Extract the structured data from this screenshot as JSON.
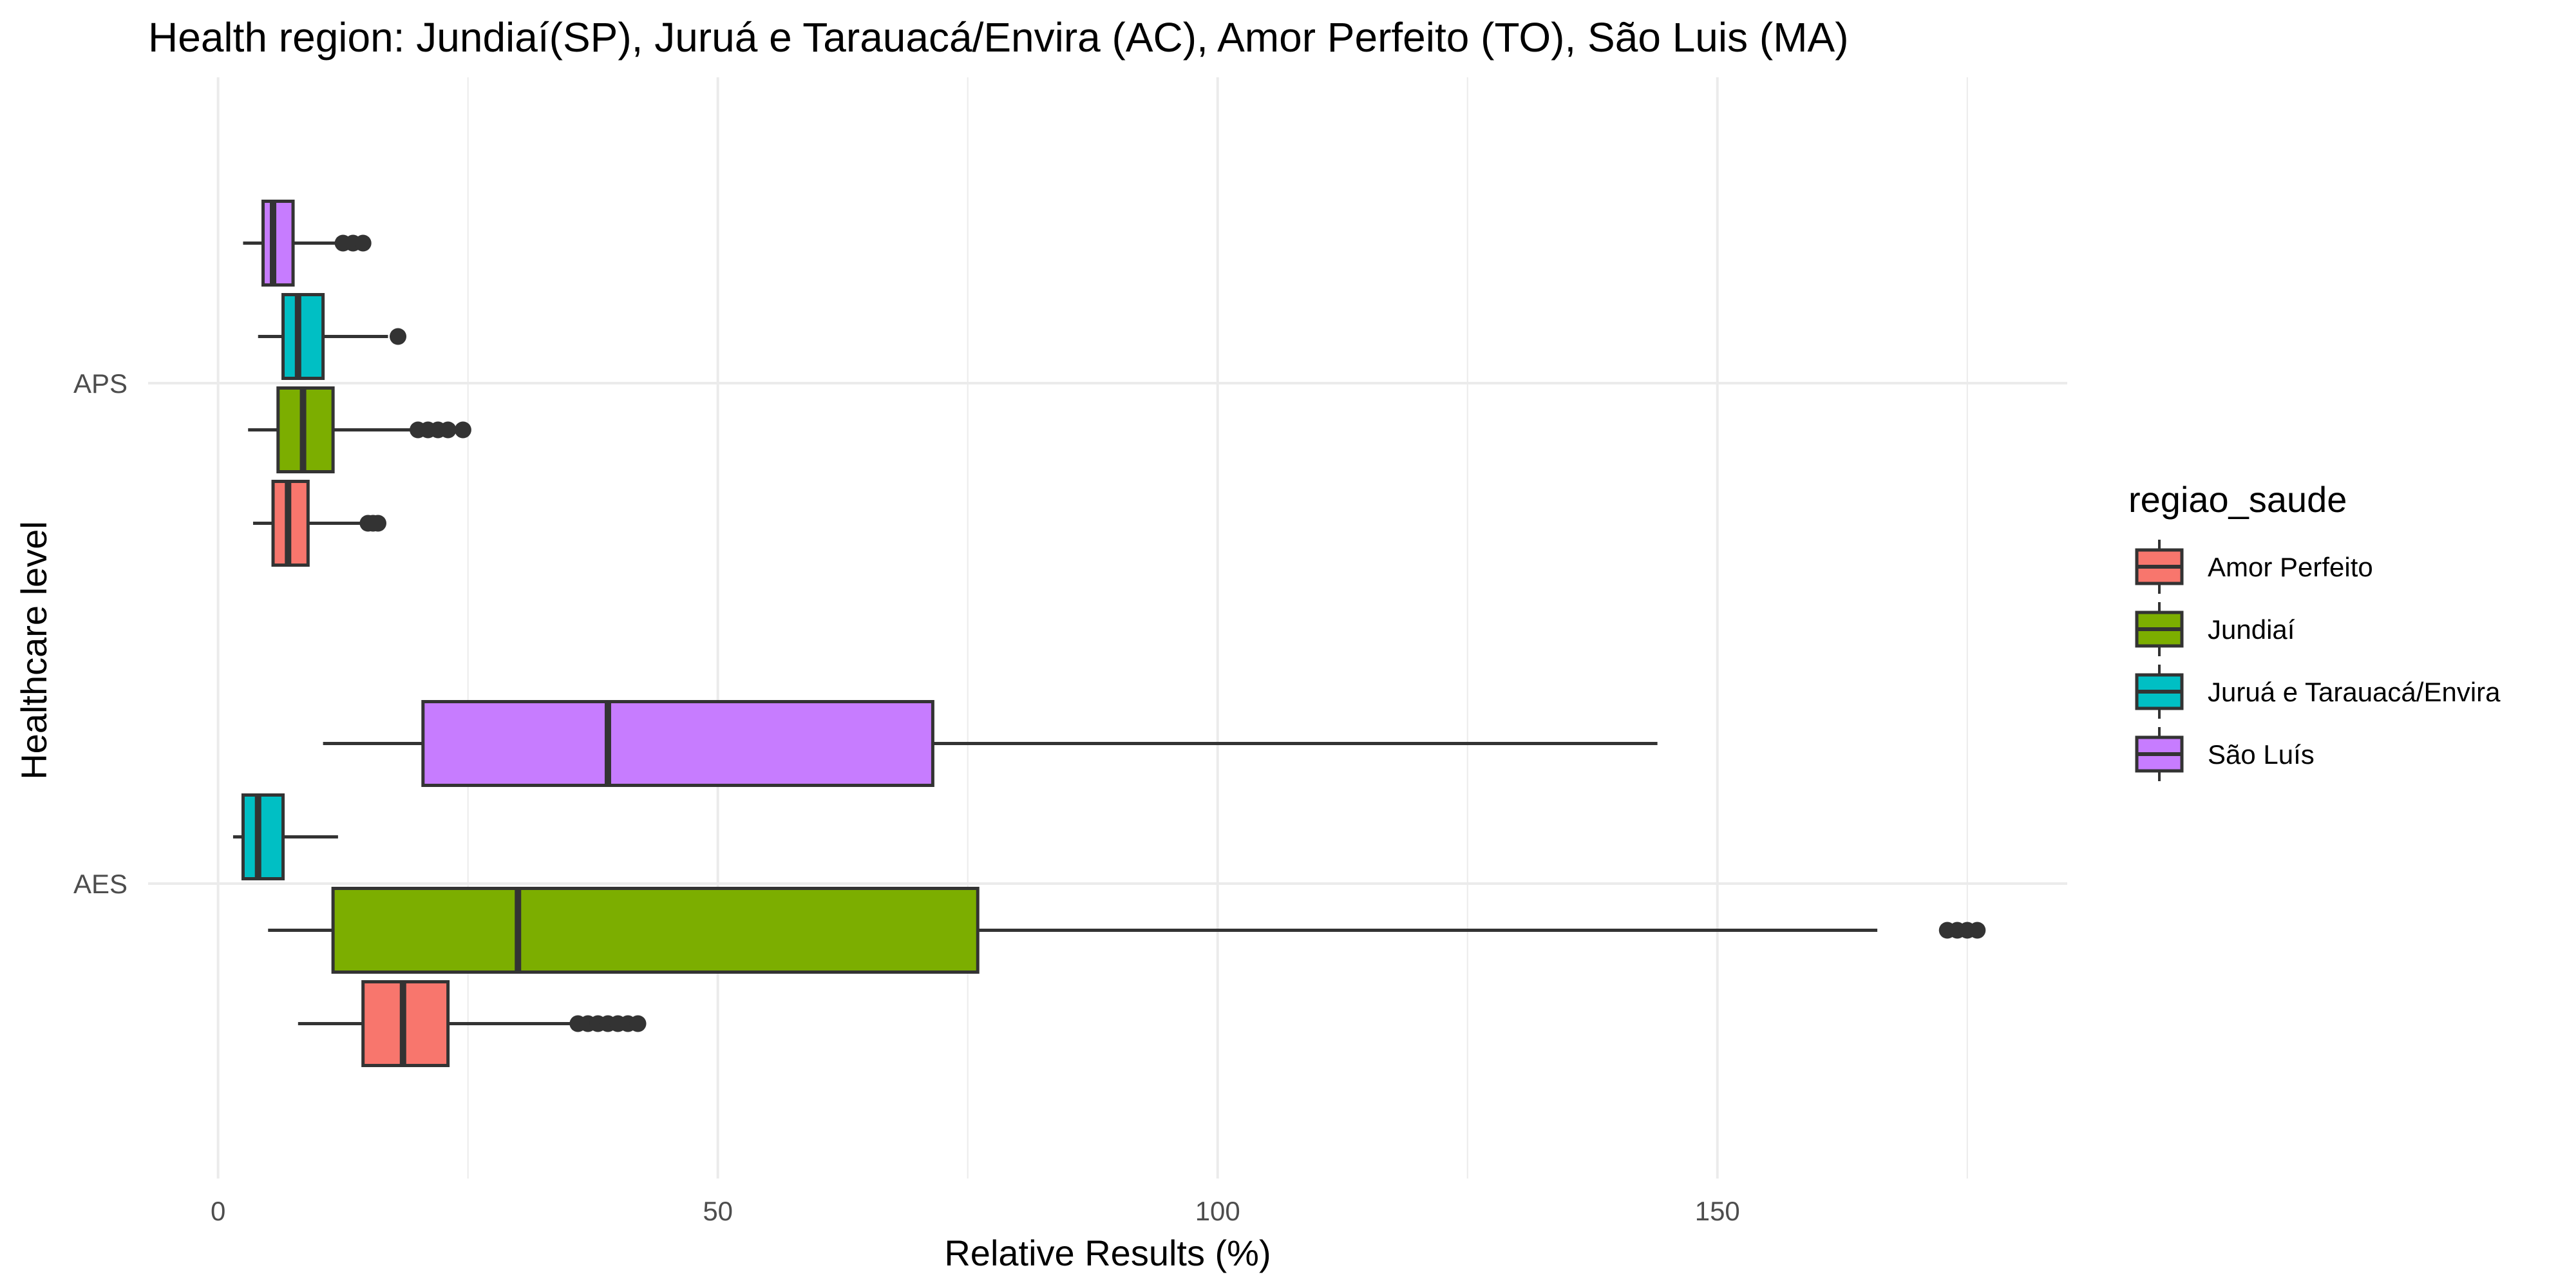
{
  "chart_data": {
    "type": "boxplot",
    "orientation": "horizontal",
    "title": "Health region: Jundiaí(SP), Juruá e Tarauacá/Envira (AC), Amor Perfeito (TO), São Luis (MA)",
    "xlabel": "Relative Results (%)",
    "ylabel": "Healthcare level",
    "xlim": [
      -7,
      185
    ],
    "x_ticks": [
      0,
      50,
      100,
      150
    ],
    "grid": true,
    "legend": {
      "title": "regiao_saude",
      "position": "right"
    },
    "categories": [
      "APS",
      "AES"
    ],
    "series": [
      {
        "name": "Amor Perfeito",
        "color": "#F8766D",
        "boxes": {
          "APS": {
            "whisker_low": 3.5,
            "q1": 5.5,
            "median": 7,
            "q3": 9,
            "whisker_high": 14.5,
            "outliers": [
              15,
              15.5,
              16
            ]
          },
          "AES": {
            "whisker_low": 8,
            "q1": 14.5,
            "median": 18.5,
            "q3": 23,
            "whisker_high": 35.5,
            "outliers": [
              36,
              37,
              38,
              39,
              40,
              41,
              42
            ]
          }
        }
      },
      {
        "name": "Jundiaí",
        "color": "#7CAE00",
        "boxes": {
          "APS": {
            "whisker_low": 3,
            "q1": 6,
            "median": 8.5,
            "q3": 11.5,
            "whisker_high": 19.5,
            "outliers": [
              20,
              21,
              22,
              23,
              24.5
            ]
          },
          "AES": {
            "whisker_low": 5,
            "q1": 11.5,
            "median": 30,
            "q3": 76,
            "whisker_high": 166,
            "outliers": [
              173,
              174,
              175,
              176
            ]
          }
        }
      },
      {
        "name": "Juruá e Tarauacá/Envira",
        "color": "#00BFC4",
        "boxes": {
          "APS": {
            "whisker_low": 4,
            "q1": 6.5,
            "median": 8,
            "q3": 10.5,
            "whisker_high": 17,
            "outliers": [
              18
            ]
          },
          "AES": {
            "whisker_low": 1.5,
            "q1": 2.5,
            "median": 4,
            "q3": 6.5,
            "whisker_high": 12,
            "outliers": []
          }
        }
      },
      {
        "name": "São Luís",
        "color": "#C77CFF",
        "boxes": {
          "APS": {
            "whisker_low": 2.5,
            "q1": 4.5,
            "median": 5.5,
            "q3": 7.5,
            "whisker_high": 12,
            "outliers": [
              12.5,
              13.5,
              14.5
            ]
          },
          "AES": {
            "whisker_low": 10.5,
            "q1": 20.5,
            "median": 39,
            "q3": 71.5,
            "whisker_high": 144,
            "outliers": []
          }
        }
      }
    ]
  }
}
